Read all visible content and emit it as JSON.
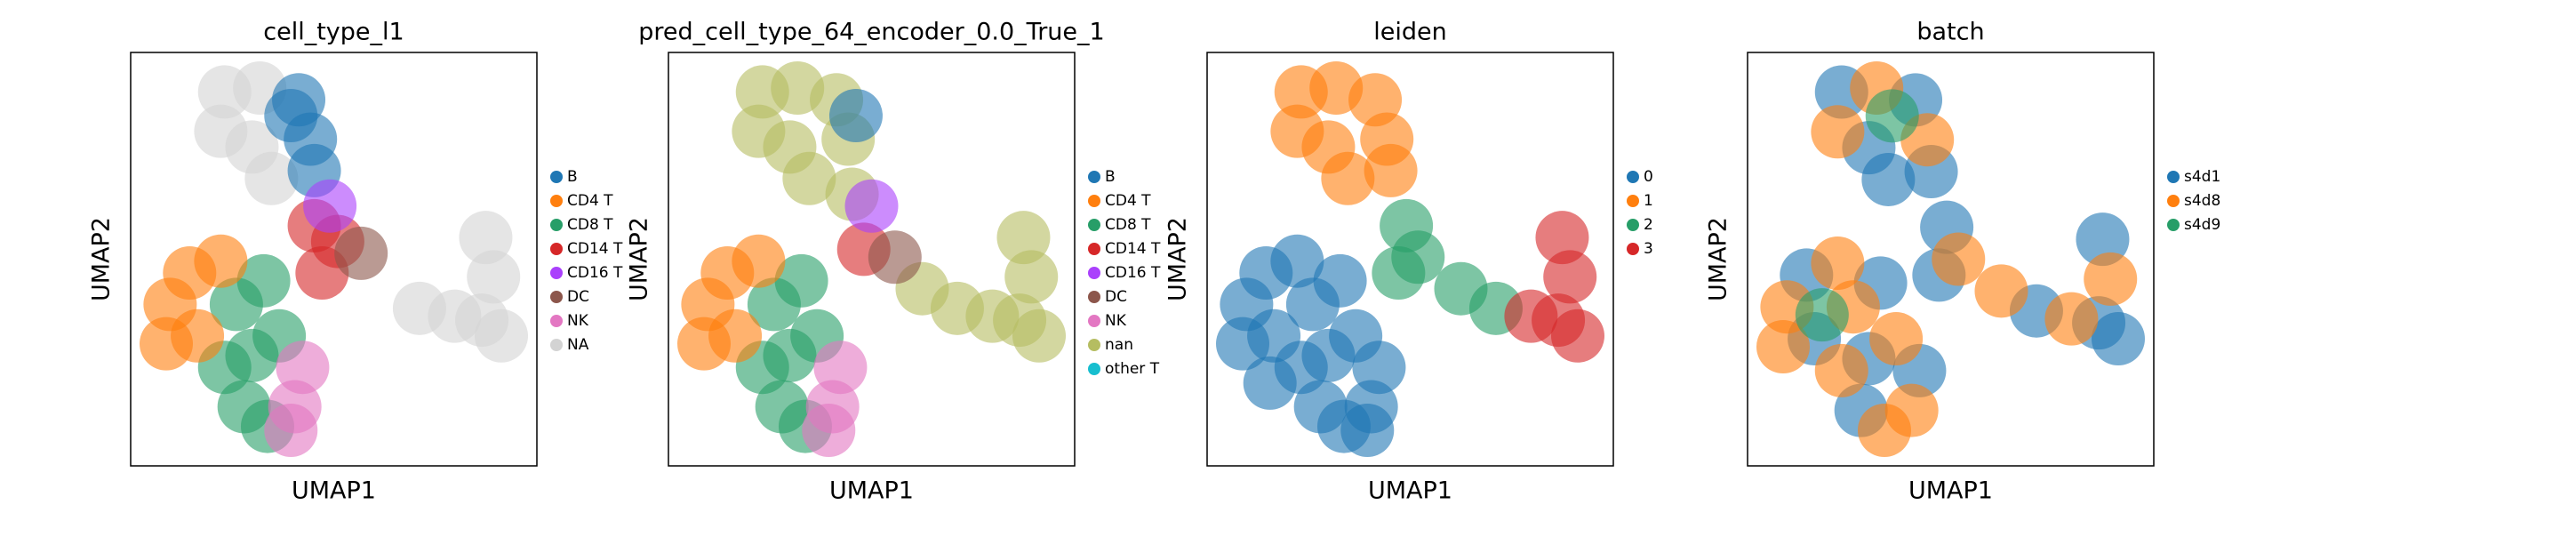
{
  "chart_data": [
    {
      "type": "scatter",
      "title": "cell_type_l1",
      "xlabel": "UMAP1",
      "ylabel": "UMAP2",
      "series": [
        {
          "name": "B",
          "color": "#1f77b4",
          "x": [
            4.2,
            4.5,
            4.6,
            4.0
          ],
          "y": [
            9.0,
            8.0,
            7.2,
            8.6
          ]
        },
        {
          "name": "CD4 T",
          "color": "#ff7f0e",
          "x": [
            0.9,
            1.4,
            0.8,
            1.6,
            2.2
          ],
          "y": [
            3.8,
            4.6,
            2.8,
            3.0,
            4.9
          ]
        },
        {
          "name": "CD8 T",
          "color": "#279e68",
          "x": [
            2.6,
            3.3,
            2.3,
            3.0,
            3.7,
            2.8,
            3.4
          ],
          "y": [
            3.8,
            4.4,
            2.2,
            2.5,
            3.0,
            1.2,
            0.7
          ]
        },
        {
          "name": "CD14 T",
          "color": "#d62728",
          "x": [
            4.6,
            5.2,
            4.8
          ],
          "y": [
            5.8,
            5.4,
            4.6
          ]
        },
        {
          "name": "CD16 T",
          "color": "#aa40fc",
          "x": [
            5.0
          ],
          "y": [
            6.3
          ]
        },
        {
          "name": "DC",
          "color": "#8c564b",
          "x": [
            5.8
          ],
          "y": [
            5.1
          ]
        },
        {
          "name": "NK",
          "color": "#e377c2",
          "x": [
            4.1,
            4.3,
            4.0
          ],
          "y": [
            1.2,
            2.2,
            0.6
          ]
        },
        {
          "name": "NA",
          "color": "#d3d3d3",
          "x": [
            2.3,
            3.2,
            2.2,
            3.0,
            3.5,
            7.3,
            8.2,
            8.9,
            9.2,
            9.0,
            9.4
          ],
          "y": [
            9.2,
            9.3,
            8.2,
            7.8,
            7.0,
            3.7,
            3.5,
            3.4,
            4.5,
            5.5,
            3.0
          ]
        }
      ]
    },
    {
      "type": "scatter",
      "title": "pred_cell_type_64_encoder_0.0_True_1",
      "xlabel": "UMAP1",
      "ylabel": "UMAP2",
      "series": [
        {
          "name": "B",
          "color": "#1f77b4",
          "x": [
            4.7
          ],
          "y": [
            8.6
          ]
        },
        {
          "name": "CD4 T",
          "color": "#ff7f0e",
          "x": [
            0.9,
            1.4,
            0.8,
            1.6,
            2.2
          ],
          "y": [
            3.8,
            4.6,
            2.8,
            3.0,
            4.9
          ]
        },
        {
          "name": "CD8 T",
          "color": "#279e68",
          "x": [
            2.6,
            3.3,
            2.3,
            3.0,
            3.7,
            2.8,
            3.4
          ],
          "y": [
            3.8,
            4.4,
            2.2,
            2.5,
            3.0,
            1.2,
            0.7
          ]
        },
        {
          "name": "CD14 T",
          "color": "#d62728",
          "x": [
            4.9
          ],
          "y": [
            5.2
          ]
        },
        {
          "name": "CD16 T",
          "color": "#aa40fc",
          "x": [
            5.1
          ],
          "y": [
            6.3
          ]
        },
        {
          "name": "DC",
          "color": "#8c564b",
          "x": [
            5.7
          ],
          "y": [
            5.0
          ]
        },
        {
          "name": "NK",
          "color": "#e377c2",
          "x": [
            4.1,
            4.3,
            4.0
          ],
          "y": [
            1.2,
            2.2,
            0.6
          ]
        },
        {
          "name": "nan",
          "color": "#b5bd61",
          "x": [
            2.3,
            3.2,
            4.2,
            2.2,
            3.0,
            4.5,
            3.5,
            4.6,
            6.4,
            7.3,
            8.2,
            8.9,
            9.2,
            9.0,
            9.4
          ],
          "y": [
            9.2,
            9.3,
            9.0,
            8.2,
            7.8,
            8.0,
            7.0,
            6.6,
            4.2,
            3.7,
            3.5,
            3.4,
            4.5,
            5.5,
            3.0
          ]
        },
        {
          "name": "other T",
          "color": "#17becf",
          "x": [],
          "y": []
        }
      ]
    },
    {
      "type": "scatter",
      "title": "leiden",
      "xlabel": "UMAP1",
      "ylabel": "UMAP2",
      "series": [
        {
          "name": "0",
          "color": "#1f77b4",
          "x": [
            0.9,
            1.4,
            0.8,
            1.6,
            2.2,
            2.6,
            3.3,
            2.3,
            3.0,
            3.7,
            2.8,
            3.4,
            4.1,
            4.3,
            4.0,
            1.5
          ],
          "y": [
            3.8,
            4.6,
            2.8,
            3.0,
            4.9,
            3.8,
            4.4,
            2.2,
            2.5,
            3.0,
            1.2,
            0.7,
            1.2,
            2.2,
            0.6,
            1.8
          ]
        },
        {
          "name": "1",
          "color": "#ff7f0e",
          "x": [
            2.3,
            3.2,
            4.2,
            2.2,
            3.0,
            4.5,
            3.5,
            4.6
          ],
          "y": [
            9.2,
            9.3,
            9.0,
            8.2,
            7.8,
            8.0,
            7.0,
            7.2
          ]
        },
        {
          "name": "2",
          "color": "#279e68",
          "x": [
            5.0,
            5.3,
            4.8,
            6.4,
            7.3
          ],
          "y": [
            5.8,
            5.0,
            4.6,
            4.2,
            3.7
          ]
        },
        {
          "name": "3",
          "color": "#d62728",
          "x": [
            8.2,
            8.9,
            9.2,
            9.0,
            9.4
          ],
          "y": [
            3.5,
            3.4,
            4.5,
            5.5,
            3.0
          ]
        }
      ]
    },
    {
      "type": "scatter",
      "title": "batch",
      "xlabel": "UMAP1",
      "ylabel": "UMAP2",
      "series": [
        {
          "name": "s4d1",
          "color": "#1f77b4",
          "x": [
            2.3,
            4.2,
            3.0,
            3.5,
            4.6,
            5.0,
            4.8,
            7.3,
            8.9,
            9.0,
            9.4,
            1.4,
            1.6,
            3.3,
            3.0,
            2.8,
            4.3
          ],
          "y": [
            9.2,
            9.0,
            7.8,
            7.0,
            7.2,
            5.8,
            4.6,
            3.7,
            3.4,
            5.5,
            3.0,
            4.6,
            3.0,
            4.4,
            2.5,
            1.2,
            2.2
          ]
        },
        {
          "name": "s4d8",
          "color": "#ff7f0e",
          "x": [
            3.2,
            2.2,
            4.5,
            5.3,
            6.4,
            8.2,
            9.2,
            0.9,
            0.8,
            2.2,
            2.6,
            2.3,
            3.7,
            3.4,
            4.1
          ],
          "y": [
            9.3,
            8.2,
            8.0,
            5.0,
            4.2,
            3.5,
            4.5,
            3.8,
            2.8,
            4.9,
            3.8,
            2.2,
            3.0,
            0.7,
            1.2
          ]
        },
        {
          "name": "s4d9",
          "color": "#279e68",
          "x": [
            3.6,
            1.8
          ],
          "y": [
            8.6,
            3.6
          ]
        }
      ]
    }
  ]
}
